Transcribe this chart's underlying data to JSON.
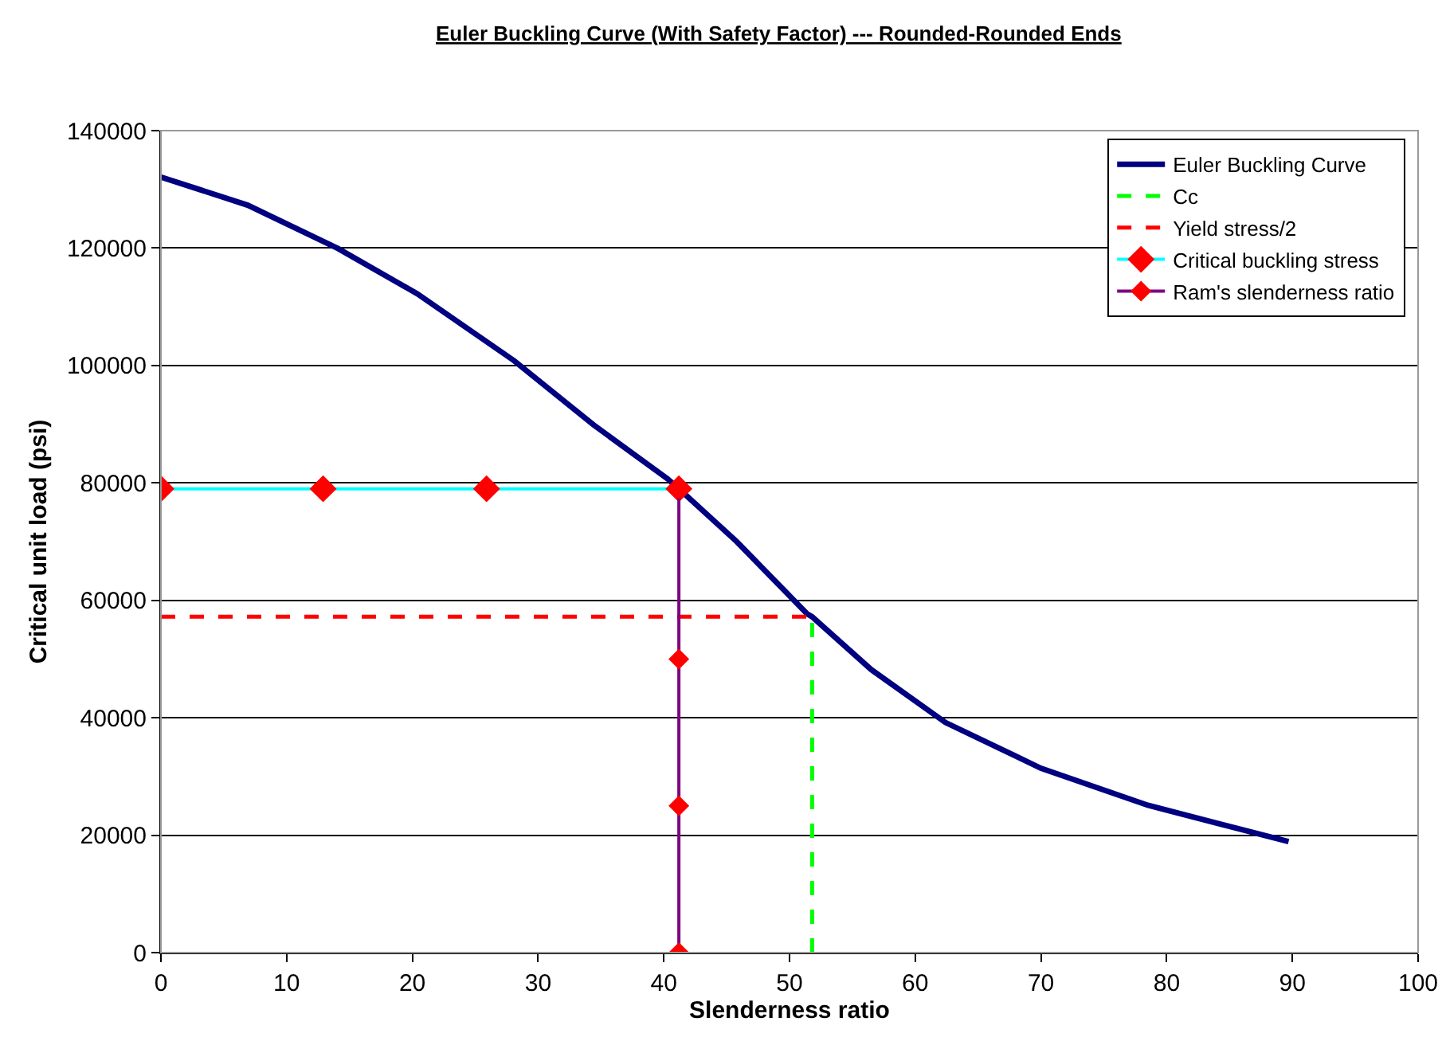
{
  "chart_data": {
    "type": "line",
    "title": "Euler Buckling Curve (With Safety Factor) --- Rounded-Rounded Ends",
    "xlabel": "Slenderness ratio",
    "ylabel": "Critical unit load (psi)",
    "xlim": [
      0,
      100
    ],
    "xticks": [
      0,
      10,
      20,
      30,
      40,
      50,
      60,
      70,
      80,
      90,
      100
    ],
    "ylim": [
      0,
      140000
    ],
    "yticks": [
      0,
      20000,
      40000,
      60000,
      80000,
      100000,
      120000,
      140000
    ],
    "grid": "y",
    "legend": "top right",
    "marker": "none",
    "line_style": "solid",
    "series": [
      {
        "name": "Euler Buckling Curve",
        "color": "#000080",
        "x": [
          0,
          6.9,
          14.1,
          20.4,
          28.1,
          34.4,
          40.3,
          41.2,
          45.8,
          51.4,
          51.8,
          56.5,
          62.4,
          70,
          78.5,
          89.7
        ],
        "values": [
          132100,
          127300,
          119900,
          112200,
          100800,
          89900,
          80700,
          79000,
          70000,
          57700,
          57200,
          48200,
          39200,
          31400,
          25100,
          18900
        ]
      },
      {
        "name": "Cc",
        "color": "#00ff00",
        "line_style": "dashed",
        "x": [
          51.8,
          51.8
        ],
        "values": [
          0,
          57200
        ]
      },
      {
        "name": "Yield stress/2",
        "color": "#ff0000",
        "line_style": "dashed",
        "x": [
          0,
          51.8
        ],
        "values": [
          57200,
          57200
        ]
      },
      {
        "name": "Critical buckling stress",
        "color": "#00ffff",
        "marker": "diamond",
        "colors": [
          "#ff0000",
          "#ff0000",
          "#ff0000",
          "#ff0000"
        ],
        "x": [
          0,
          12.9,
          25.9,
          41.2
        ],
        "values": [
          79000,
          79000,
          79000,
          79000
        ]
      },
      {
        "name": "Ram's slenderness ratio",
        "color": "#800080",
        "marker": "diamond",
        "colors": [
          "#ff0000",
          "#ff0000",
          "#ff0000",
          "#ff0000"
        ],
        "x": [
          41.2,
          41.2,
          41.2,
          41.2
        ],
        "values": [
          0,
          25000,
          50000,
          79000
        ]
      }
    ]
  }
}
